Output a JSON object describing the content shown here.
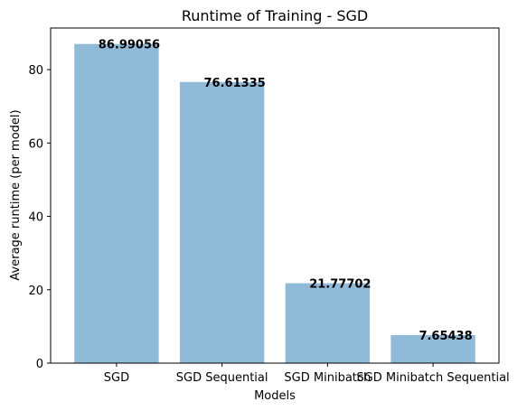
{
  "chart_data": {
    "type": "bar",
    "title": "Runtime of Training - SGD",
    "xlabel": "Models",
    "ylabel": "Average runtime (per model)",
    "categories": [
      "SGD",
      "SGD Sequential",
      "SGD Minibatch",
      "SGD Minibatch Sequential"
    ],
    "values": [
      86.99056,
      76.61335,
      21.77702,
      7.65438
    ],
    "data_labels": [
      "86.99056",
      "76.61335",
      "21.77702",
      "7.65438"
    ],
    "ylim": [
      0,
      91.34
    ],
    "yticks": [
      0,
      20,
      40,
      60,
      80
    ],
    "grid": false,
    "bar_color": "#8fbad8"
  }
}
